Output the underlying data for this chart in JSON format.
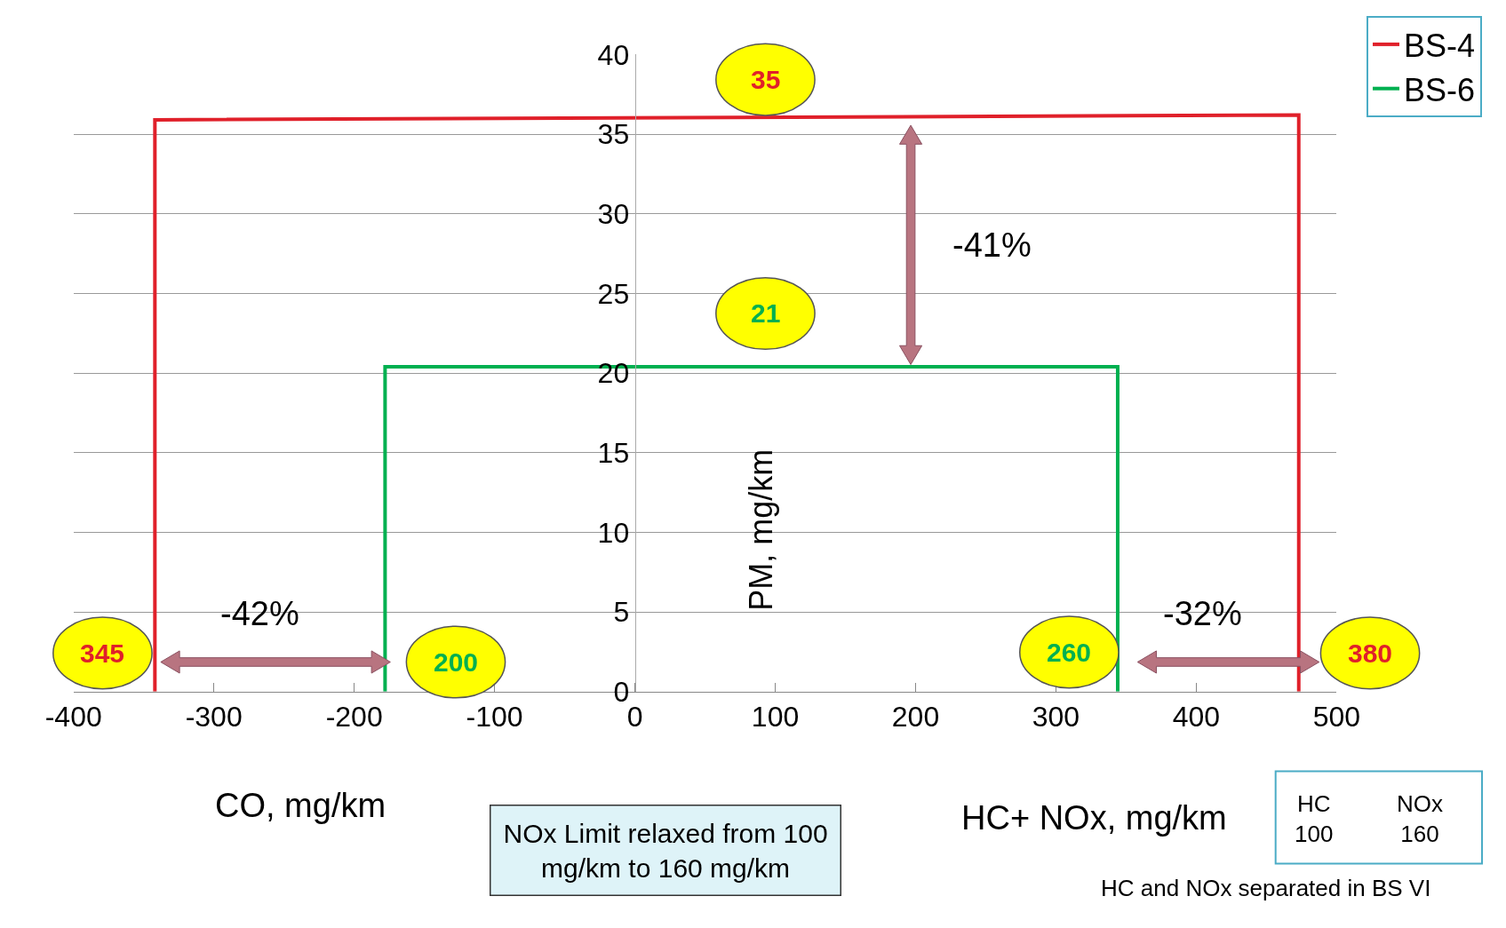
{
  "chart_data": {
    "type": "line",
    "xlabel": "CO, mg/km",
    "ylabel": "PM, mg/km",
    "xlim": [
      -400,
      500
    ],
    "xticks": [
      -400,
      -300,
      -200,
      -100,
      0,
      100,
      200,
      300,
      400,
      500
    ],
    "ylim": [
      0,
      40
    ],
    "yticks": [
      0,
      5,
      10,
      15,
      20,
      25,
      30,
      35,
      40
    ],
    "grid": "y",
    "legend": "top right",
    "series": [
      {
        "name": "BS-4",
        "color": "#e0202a",
        "x": [
          -342,
          -342,
          473,
          473
        ],
        "values": [
          0,
          35.9,
          36.2,
          0
        ]
      },
      {
        "name": "BS-6",
        "color": "#00b050",
        "x": [
          -178,
          -178,
          344,
          344
        ],
        "values": [
          0,
          20.4,
          20.4,
          0
        ]
      }
    ],
    "annotations": [
      "35",
      "345",
      "380",
      "21",
      "200",
      "260",
      "-41%",
      "-42%",
      "-32%",
      "HC+ NOx, mg/km",
      "NOx Limit relaxed from 100\nmg/km to 160 mg/km",
      "HC\n100",
      "NOx\n160",
      "HC and NOx separated in BS VI"
    ]
  }
}
